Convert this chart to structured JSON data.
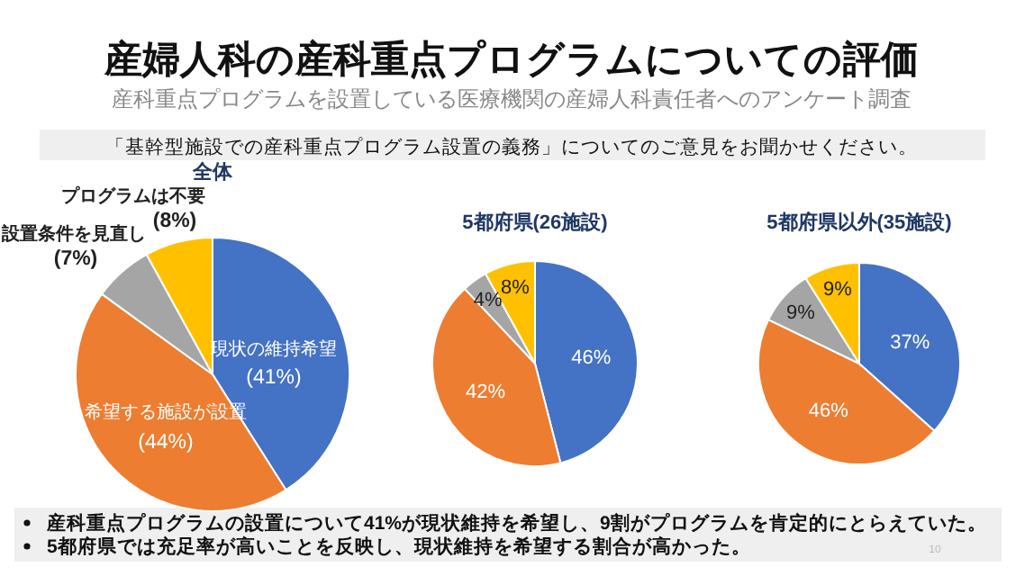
{
  "chart_data": [
    {
      "type": "other",
      "title": "産婦人科の産科重点プログラムについての評価",
      "subtitle": "産科重点プログラムを設置している医療機関の産婦人科責任者へのアンケート調査",
      "annotations": [
        "「基幹型施設での産科重点プログラム設置の義務」についてのご意見をお聞かせください。",
        "産科重点プログラムの設置について41%が現状維持を希望し、9割がプログラムを肯定的にとらえていた。",
        "5都府県では充足率が高いことを反映し、現状維持を希望する割合が高かった。",
        "10"
      ]
    },
    {
      "type": "pie",
      "title": "全体",
      "categories": [
        "現状の維持希望",
        "希望する施設が設置",
        "設置条件を見直し",
        "プログラムは不要"
      ],
      "values": [
        41,
        44,
        7,
        8
      ],
      "colors": [
        "#4472c4",
        "#ed7d31",
        "#a5a5a5",
        "#ffc000"
      ],
      "value_labels": [
        "(41%)",
        "(44%)",
        "(7%)",
        "(8%)"
      ]
    },
    {
      "type": "pie",
      "title": "5都府県(26施設)",
      "categories": [
        null,
        null,
        null,
        null
      ],
      "values": [
        46,
        42,
        4,
        8
      ],
      "colors": [
        "#4472c4",
        "#ed7d31",
        "#a5a5a5",
        "#ffc000"
      ],
      "value_labels": [
        "46%",
        "42%",
        "4%",
        "8%"
      ]
    },
    {
      "type": "pie",
      "title": "5都府県以外(35施設)",
      "categories": [
        null,
        null,
        null,
        null
      ],
      "values": [
        37,
        46,
        9,
        9
      ],
      "colors": [
        "#4472c4",
        "#ed7d31",
        "#a5a5a5",
        "#ffc000"
      ],
      "value_labels": [
        "37%",
        "46%",
        "9%",
        "9%"
      ]
    }
  ]
}
